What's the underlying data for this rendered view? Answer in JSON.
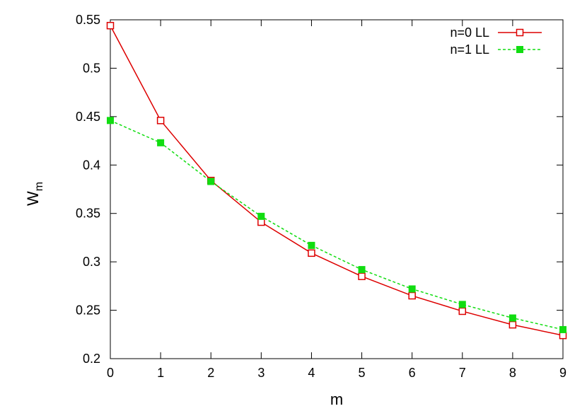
{
  "chart_data": {
    "type": "line",
    "xlabel": "m",
    "ylabel": "W",
    "ylabel_sub": "m",
    "xlim": [
      0,
      9
    ],
    "ylim": [
      0.2,
      0.55
    ],
    "xticks": [
      0,
      1,
      2,
      3,
      4,
      5,
      6,
      7,
      8,
      9
    ],
    "xtick_labels": [
      "0",
      "1",
      "2",
      "3",
      "4",
      "5",
      "6",
      "7",
      "8",
      "9"
    ],
    "yticks": [
      0.2,
      0.25,
      0.3,
      0.35,
      0.4,
      0.45,
      0.5,
      0.55
    ],
    "ytick_labels": [
      "0.2",
      "0.25",
      "0.3",
      "0.35",
      "0.4",
      "0.45",
      "0.5",
      "0.55"
    ],
    "grid": false,
    "legend_position": "top-right",
    "x": [
      0,
      1,
      2,
      3,
      4,
      5,
      6,
      7,
      8,
      9
    ],
    "series": [
      {
        "name": "n=0 LL",
        "color": "#dd0000",
        "line_style": "solid",
        "marker": "open-square",
        "values": [
          0.544,
          0.446,
          0.384,
          0.341,
          0.309,
          0.285,
          0.265,
          0.249,
          0.235,
          0.224
        ]
      },
      {
        "name": "n=1 LL",
        "color": "#11dd11",
        "line_style": "dashed",
        "marker": "filled-square",
        "values": [
          0.446,
          0.423,
          0.383,
          0.347,
          0.317,
          0.292,
          0.272,
          0.256,
          0.242,
          0.23
        ]
      }
    ]
  }
}
